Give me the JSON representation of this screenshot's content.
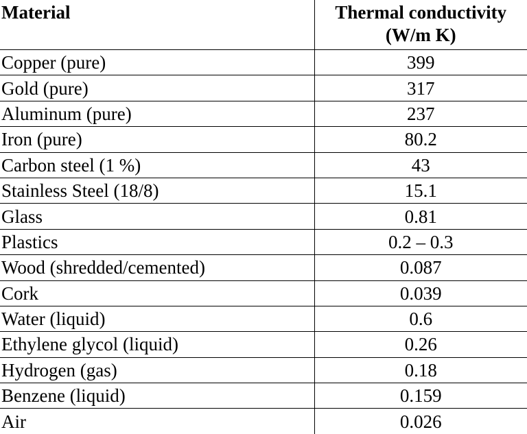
{
  "table": {
    "headers": {
      "material": "Material",
      "conductivity_line1": "Thermal conductivity",
      "conductivity_line2": "(W/m K)"
    },
    "rows": [
      {
        "material": "Copper (pure)",
        "value": "399"
      },
      {
        "material": "Gold (pure)",
        "value": "317"
      },
      {
        "material": "Aluminum (pure)",
        "value": "237"
      },
      {
        "material": "Iron (pure)",
        "value": "80.2"
      },
      {
        "material": "Carbon steel (1 %)",
        "value": "43"
      },
      {
        "material": "Stainless Steel (18/8)",
        "value": "15.1"
      },
      {
        "material": "Glass",
        "value": "0.81"
      },
      {
        "material": "Plastics",
        "value": "0.2 – 0.3"
      },
      {
        "material": "Wood (shredded/cemented)",
        "value": "0.087"
      },
      {
        "material": "Cork",
        "value": "0.039"
      },
      {
        "material": "Water (liquid)",
        "value": "0.6"
      },
      {
        "material": "Ethylene glycol (liquid)",
        "value": "0.26"
      },
      {
        "material": "Hydrogen (gas)",
        "value": "0.18"
      },
      {
        "material": "Benzene (liquid)",
        "value": "0.159"
      },
      {
        "material": "Air",
        "value": "0.026"
      }
    ]
  }
}
